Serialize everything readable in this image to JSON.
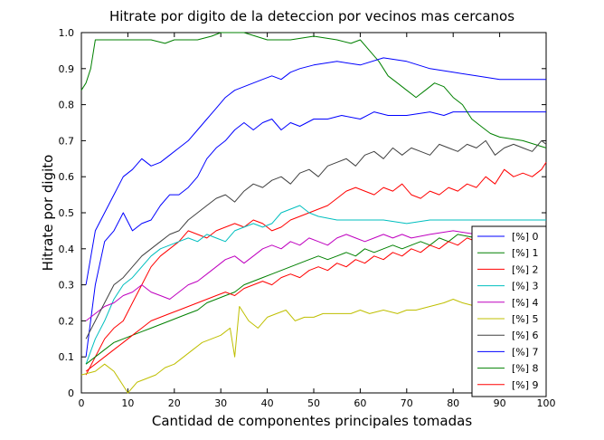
{
  "chart_data": {
    "type": "line",
    "title": "Hitrate por digito de la deteccion por vecinos mas cercanos",
    "xlabel": "Cantidad de componentes principales tomadas",
    "ylabel": "Hitrate por digito",
    "xlim": [
      0,
      100
    ],
    "ylim": [
      0,
      1
    ],
    "xticks": [
      "0",
      "10",
      "20",
      "30",
      "40",
      "50",
      "60",
      "70",
      "80",
      "90",
      "100"
    ],
    "yticks": [
      "0",
      "0.1",
      "0.2",
      "0.3",
      "0.4",
      "0.5",
      "0.6",
      "0.7",
      "0.8",
      "0.9",
      "1.0"
    ],
    "grid": false,
    "legend_position": "bottom-right",
    "series": [
      {
        "name": "[%] 0",
        "color": "#0000ff",
        "x": [
          1,
          3,
          5,
          7,
          9,
          11,
          13,
          15,
          17,
          19,
          21,
          23,
          25,
          27,
          29,
          31,
          33,
          35,
          37,
          39,
          41,
          43,
          45,
          47,
          50,
          53,
          56,
          60,
          63,
          66,
          70,
          75,
          78,
          80,
          85,
          90,
          95,
          100
        ],
        "y": [
          0.1,
          0.3,
          0.42,
          0.45,
          0.5,
          0.45,
          0.47,
          0.48,
          0.52,
          0.55,
          0.55,
          0.57,
          0.6,
          0.65,
          0.68,
          0.7,
          0.73,
          0.75,
          0.73,
          0.75,
          0.76,
          0.73,
          0.75,
          0.74,
          0.76,
          0.76,
          0.77,
          0.76,
          0.78,
          0.77,
          0.77,
          0.78,
          0.77,
          0.78,
          0.78,
          0.78,
          0.78,
          0.78
        ]
      },
      {
        "name": "[%] 1",
        "color": "#008000",
        "x": [
          0,
          1,
          2,
          3,
          5,
          10,
          15,
          18,
          20,
          22,
          25,
          28,
          30,
          35,
          40,
          45,
          50,
          55,
          58,
          60,
          62,
          64,
          66,
          68,
          70,
          72,
          74,
          76,
          78,
          80,
          82,
          84,
          86,
          88,
          90,
          95,
          100
        ],
        "y": [
          0.84,
          0.86,
          0.9,
          0.98,
          0.98,
          0.98,
          0.98,
          0.97,
          0.98,
          0.98,
          0.98,
          0.99,
          1.0,
          1.0,
          0.98,
          0.98,
          0.99,
          0.98,
          0.97,
          0.98,
          0.95,
          0.92,
          0.88,
          0.86,
          0.84,
          0.82,
          0.84,
          0.86,
          0.85,
          0.82,
          0.8,
          0.76,
          0.74,
          0.72,
          0.71,
          0.7,
          0.68
        ]
      },
      {
        "name": "[%] 2",
        "color": "#ff0000",
        "x": [
          1,
          3,
          5,
          7,
          9,
          11,
          13,
          15,
          17,
          19,
          21,
          23,
          25,
          27,
          29,
          31,
          33,
          35,
          37,
          39,
          41,
          43,
          45,
          47,
          49,
          51,
          53,
          55,
          57,
          59,
          61,
          63,
          65,
          67,
          69,
          71,
          73,
          75,
          77,
          79,
          81,
          83,
          85,
          87,
          89,
          91,
          93,
          95,
          97,
          99,
          100
        ],
        "y": [
          0.05,
          0.1,
          0.15,
          0.18,
          0.2,
          0.25,
          0.3,
          0.35,
          0.38,
          0.4,
          0.42,
          0.45,
          0.44,
          0.43,
          0.45,
          0.46,
          0.47,
          0.46,
          0.48,
          0.47,
          0.45,
          0.46,
          0.48,
          0.49,
          0.5,
          0.51,
          0.52,
          0.54,
          0.56,
          0.57,
          0.56,
          0.55,
          0.57,
          0.56,
          0.58,
          0.55,
          0.54,
          0.56,
          0.55,
          0.57,
          0.56,
          0.58,
          0.57,
          0.6,
          0.58,
          0.62,
          0.6,
          0.61,
          0.6,
          0.62,
          0.64
        ]
      },
      {
        "name": "[%] 3",
        "color": "#00bfbf",
        "x": [
          1,
          3,
          5,
          7,
          9,
          11,
          13,
          15,
          17,
          19,
          21,
          23,
          25,
          27,
          29,
          31,
          33,
          35,
          37,
          39,
          41,
          43,
          45,
          47,
          49,
          51,
          55,
          60,
          65,
          70,
          75,
          80,
          85,
          90,
          95,
          100
        ],
        "y": [
          0.08,
          0.15,
          0.2,
          0.26,
          0.3,
          0.32,
          0.35,
          0.38,
          0.4,
          0.41,
          0.42,
          0.43,
          0.42,
          0.44,
          0.43,
          0.42,
          0.45,
          0.46,
          0.47,
          0.46,
          0.47,
          0.5,
          0.51,
          0.52,
          0.5,
          0.49,
          0.48,
          0.48,
          0.48,
          0.47,
          0.48,
          0.48,
          0.48,
          0.48,
          0.48,
          0.48
        ]
      },
      {
        "name": "[%] 4",
        "color": "#bf00bf",
        "x": [
          1,
          3,
          5,
          7,
          9,
          11,
          13,
          15,
          17,
          19,
          21,
          23,
          25,
          27,
          29,
          31,
          33,
          35,
          37,
          39,
          41,
          43,
          45,
          47,
          49,
          51,
          53,
          55,
          57,
          59,
          61,
          63,
          65,
          67,
          69,
          71,
          75,
          80,
          85,
          90,
          95,
          100
        ],
        "y": [
          0.2,
          0.22,
          0.24,
          0.25,
          0.27,
          0.28,
          0.3,
          0.28,
          0.27,
          0.26,
          0.28,
          0.3,
          0.31,
          0.33,
          0.35,
          0.37,
          0.38,
          0.36,
          0.38,
          0.4,
          0.41,
          0.4,
          0.42,
          0.41,
          0.43,
          0.42,
          0.41,
          0.43,
          0.44,
          0.43,
          0.42,
          0.43,
          0.44,
          0.43,
          0.44,
          0.43,
          0.44,
          0.45,
          0.44,
          0.45,
          0.44,
          0.44
        ]
      },
      {
        "name": "[%] 5",
        "color": "#bfbf00",
        "x": [
          0,
          3,
          5,
          7,
          9,
          10,
          12,
          14,
          16,
          18,
          20,
          22,
          24,
          26,
          28,
          30,
          32,
          33,
          34,
          36,
          38,
          40,
          42,
          44,
          46,
          48,
          50,
          52,
          55,
          58,
          60,
          62,
          65,
          68,
          70,
          72,
          75,
          78,
          80,
          82,
          85,
          88,
          90,
          92,
          95,
          98,
          100
        ],
        "y": [
          0.05,
          0.06,
          0.08,
          0.06,
          0.02,
          0.0,
          0.03,
          0.04,
          0.05,
          0.07,
          0.08,
          0.1,
          0.12,
          0.14,
          0.15,
          0.16,
          0.18,
          0.1,
          0.24,
          0.2,
          0.18,
          0.21,
          0.22,
          0.23,
          0.2,
          0.21,
          0.21,
          0.22,
          0.22,
          0.22,
          0.23,
          0.22,
          0.23,
          0.22,
          0.23,
          0.23,
          0.24,
          0.25,
          0.26,
          0.25,
          0.24,
          0.25,
          0.25,
          0.23,
          0.24,
          0.25,
          0.26
        ]
      },
      {
        "name": "[%] 6",
        "color": "#404040",
        "x": [
          1,
          3,
          5,
          7,
          9,
          11,
          13,
          15,
          17,
          19,
          21,
          23,
          25,
          27,
          29,
          31,
          33,
          35,
          37,
          39,
          41,
          43,
          45,
          47,
          49,
          51,
          53,
          55,
          57,
          59,
          61,
          63,
          65,
          67,
          69,
          71,
          73,
          75,
          77,
          79,
          81,
          83,
          85,
          87,
          89,
          91,
          93,
          95,
          97,
          99,
          100
        ],
        "y": [
          0.15,
          0.2,
          0.25,
          0.3,
          0.32,
          0.35,
          0.38,
          0.4,
          0.42,
          0.44,
          0.45,
          0.48,
          0.5,
          0.52,
          0.54,
          0.55,
          0.53,
          0.56,
          0.58,
          0.57,
          0.59,
          0.6,
          0.58,
          0.61,
          0.62,
          0.6,
          0.63,
          0.64,
          0.65,
          0.63,
          0.66,
          0.67,
          0.65,
          0.68,
          0.66,
          0.68,
          0.67,
          0.66,
          0.69,
          0.68,
          0.67,
          0.69,
          0.68,
          0.7,
          0.66,
          0.68,
          0.69,
          0.68,
          0.67,
          0.7,
          0.69
        ]
      },
      {
        "name": "[%] 7",
        "color": "#0000ff",
        "x": [
          1,
          3,
          5,
          7,
          9,
          11,
          13,
          15,
          17,
          19,
          21,
          23,
          25,
          27,
          29,
          31,
          33,
          35,
          37,
          39,
          41,
          43,
          45,
          47,
          50,
          55,
          60,
          65,
          70,
          75,
          80,
          85,
          90,
          95,
          100
        ],
        "y": [
          0.3,
          0.45,
          0.5,
          0.55,
          0.6,
          0.62,
          0.65,
          0.63,
          0.64,
          0.66,
          0.68,
          0.7,
          0.73,
          0.76,
          0.79,
          0.82,
          0.84,
          0.85,
          0.86,
          0.87,
          0.88,
          0.87,
          0.89,
          0.9,
          0.91,
          0.92,
          0.91,
          0.93,
          0.92,
          0.9,
          0.89,
          0.88,
          0.87,
          0.87,
          0.87
        ]
      },
      {
        "name": "[%] 8",
        "color": "#008000",
        "x": [
          1,
          3,
          5,
          7,
          9,
          11,
          13,
          15,
          17,
          19,
          21,
          23,
          25,
          27,
          29,
          31,
          33,
          35,
          37,
          39,
          41,
          43,
          45,
          47,
          49,
          51,
          53,
          55,
          57,
          59,
          61,
          63,
          65,
          67,
          69,
          71,
          73,
          75,
          77,
          79,
          81,
          85,
          90,
          95,
          100
        ],
        "y": [
          0.08,
          0.1,
          0.12,
          0.14,
          0.15,
          0.16,
          0.17,
          0.18,
          0.19,
          0.2,
          0.21,
          0.22,
          0.23,
          0.25,
          0.26,
          0.27,
          0.28,
          0.3,
          0.31,
          0.32,
          0.33,
          0.34,
          0.35,
          0.36,
          0.37,
          0.38,
          0.37,
          0.38,
          0.39,
          0.38,
          0.4,
          0.39,
          0.4,
          0.41,
          0.4,
          0.41,
          0.42,
          0.41,
          0.43,
          0.42,
          0.44,
          0.43,
          0.44,
          0.43,
          0.42
        ]
      },
      {
        "name": "[%] 9",
        "color": "#ff0000",
        "x": [
          1,
          3,
          5,
          7,
          9,
          11,
          13,
          15,
          17,
          19,
          21,
          23,
          25,
          27,
          29,
          31,
          33,
          35,
          37,
          39,
          41,
          43,
          45,
          47,
          49,
          51,
          53,
          55,
          57,
          59,
          61,
          63,
          65,
          67,
          69,
          71,
          73,
          75,
          77,
          79,
          81,
          83,
          85,
          87,
          89,
          91,
          93,
          95,
          97,
          99,
          100
        ],
        "y": [
          0.06,
          0.08,
          0.1,
          0.12,
          0.14,
          0.16,
          0.18,
          0.2,
          0.21,
          0.22,
          0.23,
          0.24,
          0.25,
          0.26,
          0.27,
          0.28,
          0.27,
          0.29,
          0.3,
          0.31,
          0.3,
          0.32,
          0.33,
          0.32,
          0.34,
          0.35,
          0.34,
          0.36,
          0.35,
          0.37,
          0.36,
          0.38,
          0.37,
          0.39,
          0.38,
          0.4,
          0.39,
          0.41,
          0.4,
          0.42,
          0.41,
          0.43,
          0.42,
          0.44,
          0.43,
          0.45,
          0.44,
          0.43,
          0.45,
          0.44,
          0.46
        ]
      }
    ]
  }
}
